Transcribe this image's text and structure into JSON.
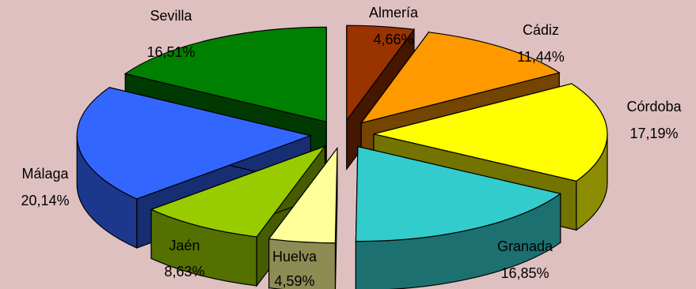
{
  "chart_data": {
    "type": "pie",
    "style": "3d-exploded",
    "background": "#dfc0c0",
    "slices": [
      {
        "label": "Almería",
        "value": 4.66,
        "display": "4,66%",
        "color": "#993300"
      },
      {
        "label": "Cádiz",
        "value": 11.44,
        "display": "11,44%",
        "color": "#ff9900"
      },
      {
        "label": "Córdoba",
        "value": 17.19,
        "display": "17,19%",
        "color": "#ffff00"
      },
      {
        "label": "Granada",
        "value": 16.85,
        "display": "16,85%",
        "color": "#33cccc"
      },
      {
        "label": "Huelva",
        "value": 4.59,
        "display": "4,59%",
        "color": "#ffff99"
      },
      {
        "label": "Jaén",
        "value": 8.63,
        "display": "8,63%",
        "color": "#99cc00"
      },
      {
        "label": "Málaga",
        "value": 20.14,
        "display": "20,14%",
        "color": "#3366ff"
      },
      {
        "label": "Sevilla",
        "value": 16.51,
        "display": "16,51%",
        "color": "#008000"
      }
    ]
  }
}
